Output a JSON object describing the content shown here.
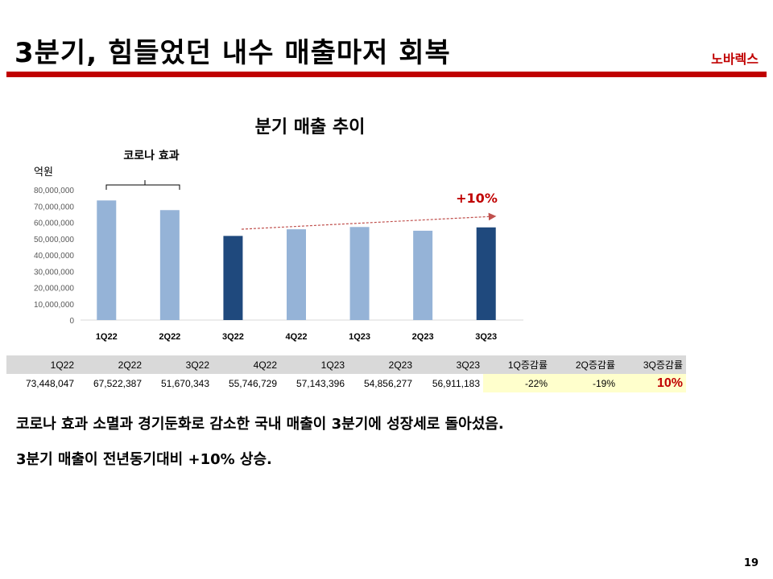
{
  "header": {
    "title": "3분기, 힘들었던 내수 매출마저 회복",
    "brand": "노바렉스"
  },
  "chart_data": {
    "type": "bar",
    "title": "분기 매출 추이",
    "ylabel": "억원",
    "ylim": [
      0,
      80000000
    ],
    "yticks": [
      "0",
      "10,000,000",
      "20,000,000",
      "30,000,000",
      "40,000,000",
      "50,000,000",
      "60,000,000",
      "70,000,000",
      "80,000,000"
    ],
    "categories": [
      "1Q22",
      "2Q22",
      "3Q22",
      "4Q22",
      "1Q23",
      "2Q23",
      "3Q23"
    ],
    "values": [
      73448047,
      67522387,
      51670343,
      55746729,
      57143396,
      54856277,
      56911183
    ],
    "highlight": [
      false,
      false,
      true,
      false,
      false,
      false,
      true
    ],
    "colors": {
      "normal": "#95b3d7",
      "highlight": "#1f497d",
      "arrow": "#c0504d"
    },
    "annotations": {
      "bracket": "코로나 효과",
      "growth": "+10%"
    }
  },
  "table": {
    "headers": [
      "1Q22",
      "2Q22",
      "3Q22",
      "4Q22",
      "1Q23",
      "2Q23",
      "3Q23",
      "1Q증감률",
      "2Q증감률",
      "3Q증감률"
    ],
    "values": [
      "73,448,047",
      "67,522,387",
      "51,670,343",
      "55,746,729",
      "57,143,396",
      "54,856,277",
      "56,911,183",
      "-22%",
      "-19%",
      "10%"
    ]
  },
  "notes": [
    "코로나 효과 소멸과 경기둔화로 감소한 국내 매출이 3분기에 성장세로 돌아섰음.",
    "3분기 매출이 전년동기대비 +10% 상승."
  ],
  "page": "19"
}
